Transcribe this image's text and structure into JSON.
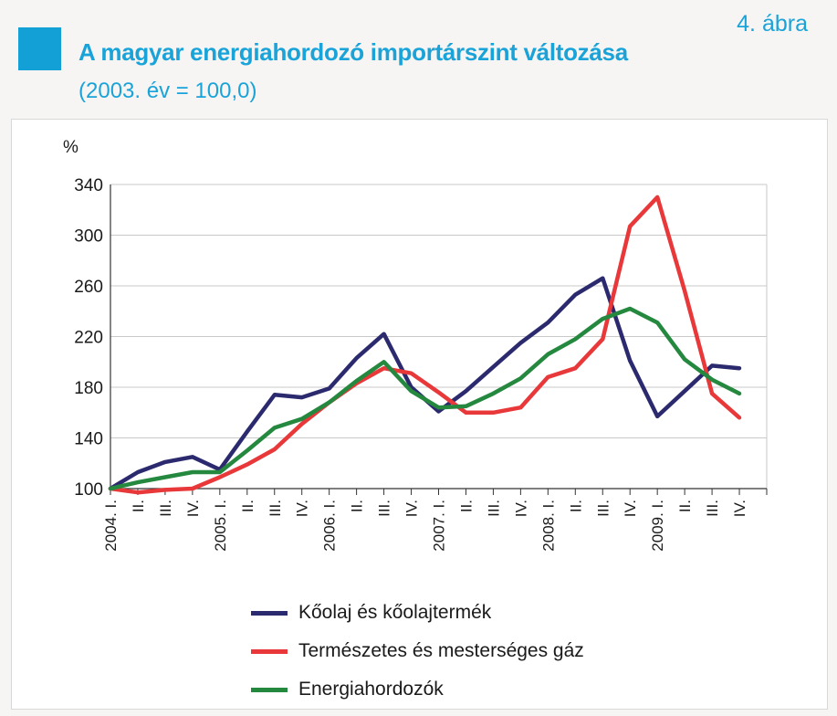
{
  "header": {
    "figure_number": "4. ábra",
    "title": "A magyar energiahordozó importárszint változása",
    "subtitle": "(2003. év = 100,0)"
  },
  "colors": {
    "accent": "#12a0d6",
    "series_oil": "#2c2a6e",
    "series_gas": "#e8383a",
    "series_energy": "#24883e",
    "grid": "#c9c9c9"
  },
  "chart_data": {
    "type": "line",
    "ylabel": "%",
    "ylim": [
      100,
      340
    ],
    "yticks": [
      100,
      140,
      180,
      220,
      260,
      300,
      340
    ],
    "grid": true,
    "legend_position": "bottom",
    "categories": [
      "2004. I.",
      "II.",
      "III.",
      "IV.",
      "2005. I.",
      "II.",
      "III.",
      "IV.",
      "2006. I.",
      "II.",
      "III.",
      "IV.",
      "2007. I.",
      "II.",
      "III.",
      "IV.",
      "2008. I.",
      "II.",
      "III.",
      "IV.",
      "2009. I.",
      "II.",
      "III.",
      "IV."
    ],
    "series": [
      {
        "name": "Kőolaj és kőolajtermék",
        "color": "#2c2a6e",
        "values": [
          100,
          113,
          121,
          125,
          115,
          145,
          174,
          172,
          179,
          203,
          222,
          180,
          161,
          177,
          196,
          215,
          231,
          253,
          266,
          201,
          157,
          177,
          197,
          195
        ]
      },
      {
        "name": "Természetes és mesterséges gáz",
        "color": "#e8383a",
        "values": [
          100,
          97,
          99,
          100,
          109,
          119,
          131,
          151,
          168,
          183,
          195,
          191,
          176,
          160,
          160,
          164,
          188,
          195,
          218,
          307,
          330,
          256,
          175,
          156
        ]
      },
      {
        "name": "Energiahordozók",
        "color": "#24883e",
        "values": [
          100,
          105,
          109,
          113,
          113,
          130,
          148,
          155,
          168,
          185,
          200,
          177,
          164,
          165,
          175,
          187,
          206,
          218,
          234,
          242,
          231,
          202,
          186,
          175
        ]
      }
    ]
  }
}
